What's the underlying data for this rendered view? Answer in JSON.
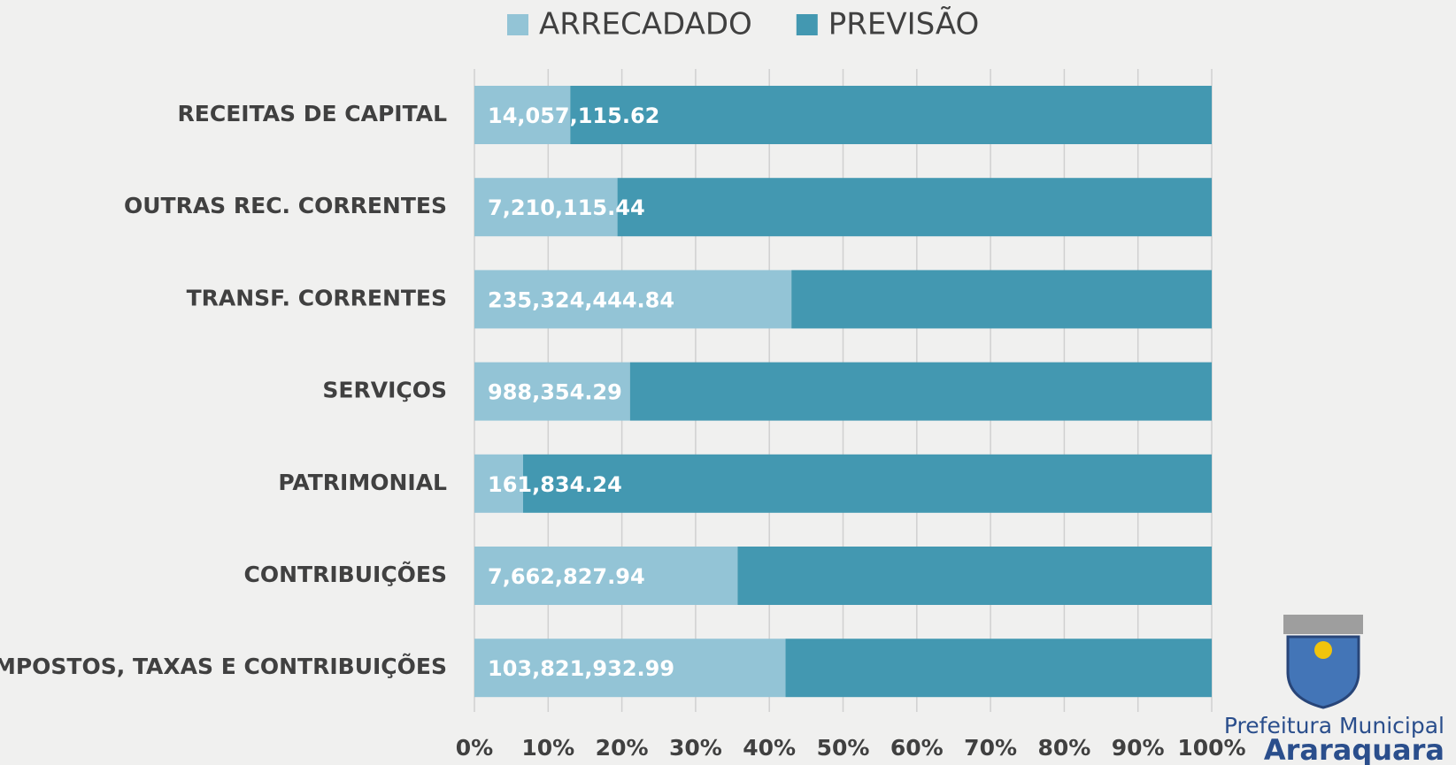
{
  "chart_data": {
    "type": "stacked-bar-100",
    "orientation": "horizontal",
    "categories": [
      "RECEITAS DE CAPITAL",
      "OUTRAS REC. CORRENTES",
      "TRANSF. CORRENTES",
      "SERVIÇOS",
      "PATRIMONIAL",
      "CONTRIBUIÇÕES",
      "IMPOSTOS, TAXAS E CONTRIBUIÇÕES"
    ],
    "series": [
      {
        "name": "ARRECADADO",
        "color": "#93c4d6",
        "values": [
          13,
          19.4,
          43,
          21.1,
          6.6,
          35.7,
          42.2
        ],
        "data_labels": [
          "14,057,115.62",
          "7,210,115.44",
          "235,324,444.84",
          "988,354.29",
          "161,834.24",
          "7,662,827.94",
          "103,821,932.99"
        ]
      },
      {
        "name": "PREVISÃO",
        "color": "#4398b1",
        "values": [
          87,
          80.6,
          57,
          78.9,
          93.4,
          64.3,
          57.8
        ]
      }
    ],
    "xlim": [
      0,
      100
    ],
    "xticks": [
      {
        "value": 0,
        "label": "0%"
      },
      {
        "value": 10,
        "label": "10%"
      },
      {
        "value": 20,
        "label": "20%"
      },
      {
        "value": 30,
        "label": "30%"
      },
      {
        "value": 40,
        "label": "40%"
      },
      {
        "value": 50,
        "label": "50%"
      },
      {
        "value": 60,
        "label": "60%"
      },
      {
        "value": 70,
        "label": "70%"
      },
      {
        "value": 80,
        "label": "80%"
      },
      {
        "value": 90,
        "label": "90%"
      },
      {
        "value": 100,
        "label": "100%"
      }
    ],
    "grid": true,
    "legend": "top"
  },
  "branding": {
    "line1": "Prefeitura Municipal",
    "line2": "Araraquara"
  }
}
